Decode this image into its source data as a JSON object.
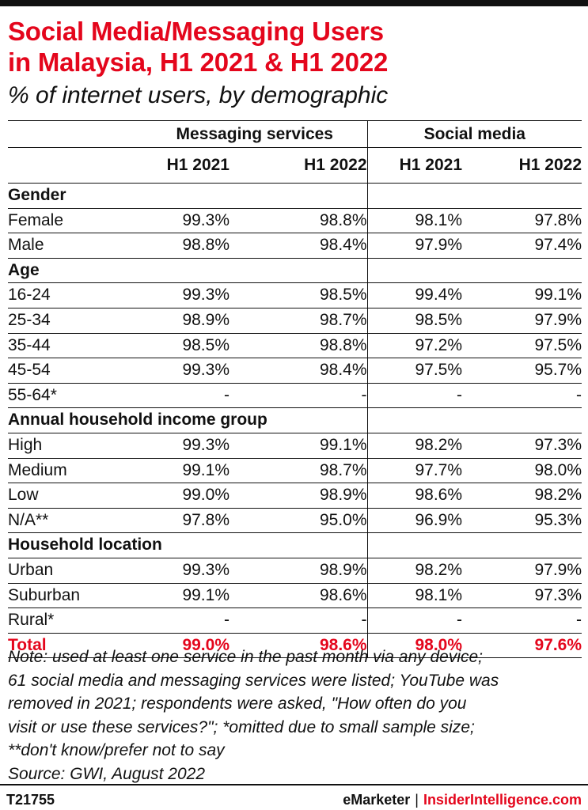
{
  "title_line1": "Social Media/Messaging Users",
  "title_line2": "in Malaysia, H1 2021 & H1 2022",
  "subtitle": "% of internet users, by demographic",
  "groups": [
    "Messaging services",
    "Social media"
  ],
  "periods": [
    "H1 2021",
    "H1 2022",
    "H1 2021",
    "H1 2022"
  ],
  "chart_data": {
    "type": "table",
    "columns": [
      "Messaging services H1 2021",
      "Messaging services H1 2022",
      "Social media H1 2021",
      "Social media H1 2022"
    ],
    "rows": [
      {
        "label": "Gender",
        "section": true,
        "values": [
          "",
          "",
          "",
          ""
        ]
      },
      {
        "label": "Female",
        "values": [
          "99.3%",
          "98.8%",
          "98.1%",
          "97.8%"
        ]
      },
      {
        "label": "Male",
        "values": [
          "98.8%",
          "98.4%",
          "97.9%",
          "97.4%"
        ]
      },
      {
        "label": "Age",
        "section": true,
        "values": [
          "",
          "",
          "",
          ""
        ]
      },
      {
        "label": "16-24",
        "values": [
          "99.3%",
          "98.5%",
          "99.4%",
          "99.1%"
        ]
      },
      {
        "label": "25-34",
        "values": [
          "98.9%",
          "98.7%",
          "98.5%",
          "97.9%"
        ]
      },
      {
        "label": "35-44",
        "values": [
          "98.5%",
          "98.8%",
          "97.2%",
          "97.5%"
        ]
      },
      {
        "label": "45-54",
        "values": [
          "99.3%",
          "98.4%",
          "97.5%",
          "95.7%"
        ]
      },
      {
        "label": "55-64*",
        "values": [
          "-",
          "-",
          "-",
          "-"
        ]
      },
      {
        "label": "Annual household income group",
        "section": true,
        "values": [
          "",
          "",
          "",
          ""
        ]
      },
      {
        "label": "High",
        "values": [
          "99.3%",
          "99.1%",
          "98.2%",
          "97.3%"
        ]
      },
      {
        "label": "Medium",
        "values": [
          "99.1%",
          "98.7%",
          "97.7%",
          "98.0%"
        ]
      },
      {
        "label": "Low",
        "values": [
          "99.0%",
          "98.9%",
          "98.6%",
          "98.2%"
        ]
      },
      {
        "label": "N/A**",
        "values": [
          "97.8%",
          "95.0%",
          "96.9%",
          "95.3%"
        ]
      },
      {
        "label": "Household location",
        "section": true,
        "values": [
          "",
          "",
          "",
          ""
        ]
      },
      {
        "label": "Urban",
        "values": [
          "99.3%",
          "98.9%",
          "98.2%",
          "97.9%"
        ]
      },
      {
        "label": "Suburban",
        "values": [
          "99.1%",
          "98.6%",
          "98.1%",
          "97.3%"
        ]
      },
      {
        "label": "Rural*",
        "values": [
          "-",
          "-",
          "-",
          "-"
        ]
      },
      {
        "label": "Total",
        "total": true,
        "values": [
          "99.0%",
          "98.6%",
          "98.0%",
          "97.6%"
        ]
      }
    ]
  },
  "note_lines": [
    "Note: used at least one service in the past month via any device;",
    "61 social media and messaging services were listed; YouTube was",
    "removed in 2021; respondents were asked, \"How often do you",
    "visit or use these services?\"; *omitted due to small sample size;",
    "**don't know/prefer not to say"
  ],
  "source": "Source: GWI, August 2022",
  "footer": {
    "id": "T21755",
    "brand1": "eMarketer",
    "separator": "|",
    "brand2": "InsiderIntelligence.com"
  },
  "colors": {
    "accent": "#e4061c",
    "text": "#111111"
  }
}
